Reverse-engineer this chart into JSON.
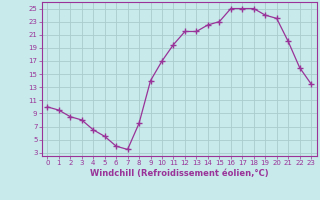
{
  "x": [
    0,
    1,
    2,
    3,
    4,
    5,
    6,
    7,
    8,
    9,
    10,
    11,
    12,
    13,
    14,
    15,
    16,
    17,
    18,
    19,
    20,
    21,
    22,
    23
  ],
  "y": [
    10,
    9.5,
    8.5,
    8,
    6.5,
    5.5,
    4,
    3.5,
    7.5,
    14,
    17,
    19.5,
    21.5,
    21.5,
    22.5,
    23,
    25,
    25,
    25,
    24,
    23.5,
    20,
    16,
    13.5
  ],
  "line_color": "#993399",
  "marker": "+",
  "bg_color": "#c8eaea",
  "grid_color": "#aacccc",
  "xlabel": "Windchill (Refroidissement éolien,°C)",
  "xlabel_color": "#993399",
  "ylabel_ticks": [
    3,
    5,
    7,
    9,
    11,
    13,
    15,
    17,
    19,
    21,
    23,
    25
  ],
  "xtick_labels": [
    "0",
    "1",
    "2",
    "3",
    "4",
    "5",
    "6",
    "7",
    "8",
    "9",
    "10",
    "11",
    "12",
    "13",
    "14",
    "15",
    "16",
    "17",
    "18",
    "19",
    "20",
    "21",
    "22",
    "23"
  ],
  "ylim": [
    2.5,
    26
  ],
  "xlim": [
    -0.5,
    23.5
  ],
  "tick_color": "#993399",
  "spine_color": "#993399",
  "xlabel_fontsize": 6.0,
  "tick_fontsize": 5.0
}
